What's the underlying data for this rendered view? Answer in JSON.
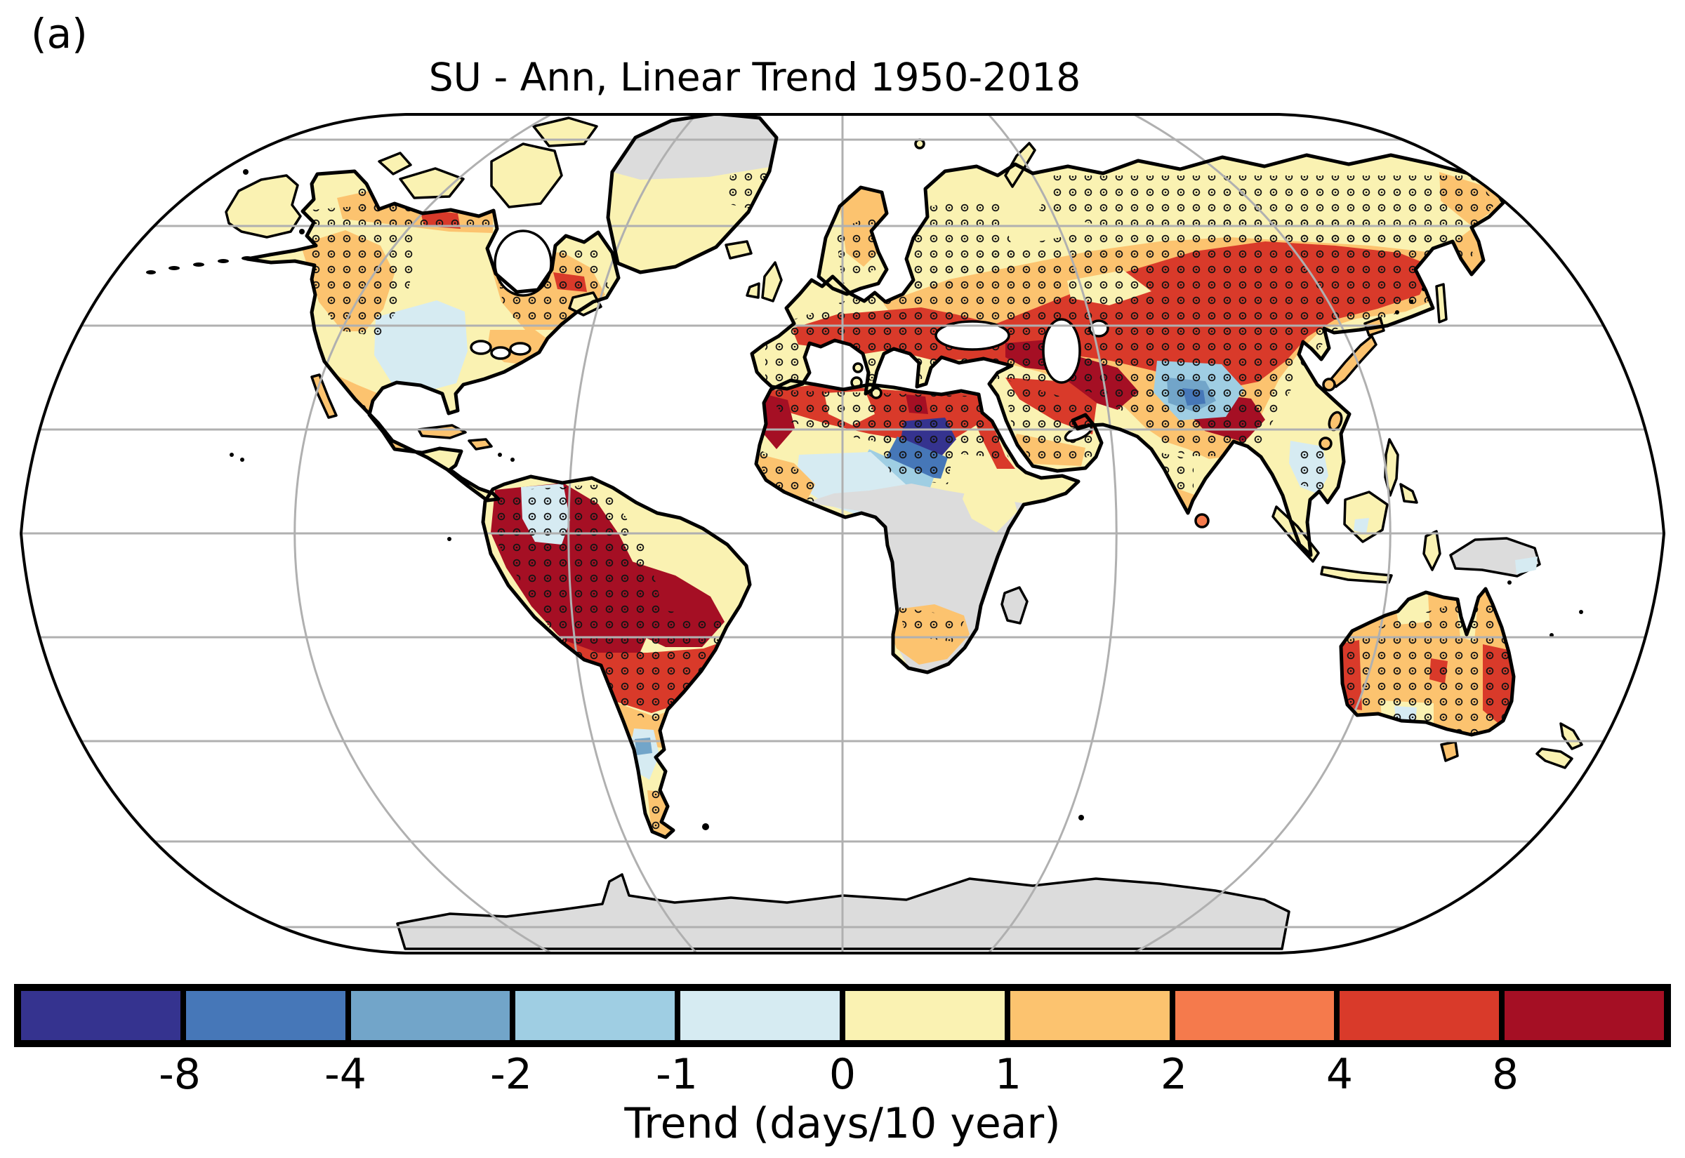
{
  "figure": {
    "panel_label": "(a)",
    "title": "SU - Ann, Linear Trend 1950-2018"
  },
  "colorbar": {
    "axis_label": "Trend (days/10 year)",
    "tick_labels": [
      "-8",
      "-4",
      "-2",
      "-1",
      "0",
      "1",
      "2",
      "4",
      "8"
    ],
    "cell_colors": [
      "#35338f",
      "#4677b8",
      "#72a5c9",
      "#9fcee3",
      "#d6ebf2",
      "#faf2b2",
      "#fcc36f",
      "#f57a4c",
      "#d93a2a",
      "#a50f24"
    ],
    "no_data_color": "#dcdcdc",
    "frame_color": "#000000"
  },
  "map": {
    "projection": "Robinson",
    "ocean_color": "#ffffff",
    "graticule_color": "#b0b0b0",
    "coastline_color": "#000000",
    "stipple": "small open circles over land mark significant trends",
    "regions": [
      {
        "name": "Alaska and far northern Canada",
        "trend_days_per_decade": "0 to 1"
      },
      {
        "name": "Western Canada and US Pacific coast",
        "trend_days_per_decade": "1 to 2 (stippled)"
      },
      {
        "name": "Central and southeastern United States",
        "trend_days_per_decade": "-1 to 0"
      },
      {
        "name": "Eastern Canada / Quebec",
        "trend_days_per_decade": "1 to 2 (stippled)"
      },
      {
        "name": "Mexico and Central America",
        "trend_days_per_decade": "1 to 4 (stippled)"
      },
      {
        "name": "Greenland interior",
        "trend_days_per_decade": "no data"
      },
      {
        "name": "Northwestern South America (Colombia-Peru-W Brazil)",
        "trend_days_per_decade": "greater than 8 (stippled)"
      },
      {
        "name": "Central and eastern Brazil",
        "trend_days_per_decade": "2 to 4 (stippled)"
      },
      {
        "name": "Central Argentina",
        "trend_days_per_decade": "-2 to 0"
      },
      {
        "name": "Patagonia",
        "trend_days_per_decade": "1 to 2 (stippled)"
      },
      {
        "name": "Northwest Africa (Morocco / Western Sahara)",
        "trend_days_per_decade": "4 to more than 8 (stippled)"
      },
      {
        "name": "North Africa, Mediterranean and Middle East",
        "trend_days_per_decade": "2 to 4 (stippled)"
      },
      {
        "name": "Sudan-Chad region",
        "trend_days_per_decade": "-8 to -4 (stippled)"
      },
      {
        "name": "Sahel belt",
        "trend_days_per_decade": "-2 to 0 (partly stippled)"
      },
      {
        "name": "Central Africa and Antarctica",
        "trend_days_per_decade": "no data"
      },
      {
        "name": "Southern Africa",
        "trend_days_per_decade": "1 to 2 (stippled)"
      },
      {
        "name": "Europe",
        "trend_days_per_decade": "2 to 4 (stippled)"
      },
      {
        "name": "Siberia, Central Asia and northern China",
        "trend_days_per_decade": "2 to 4 (stippled)"
      },
      {
        "name": "Tibetan Plateau",
        "trend_days_per_decade": "-4 to -1"
      },
      {
        "name": "Iran / Caucasus",
        "trend_days_per_decade": "4 to 8 (stippled)"
      },
      {
        "name": "Southeast China / Myanmar",
        "trend_days_per_decade": "4 to 8 (stippled)"
      },
      {
        "name": "India",
        "trend_days_per_decade": "0 to 1 (partly stippled)"
      },
      {
        "name": "Mainland Southeast Asia",
        "trend_days_per_decade": "-1 to 0"
      },
      {
        "name": "Australia",
        "trend_days_per_decade": "1 to 4 (stippled)"
      },
      {
        "name": "New Zealand",
        "trend_days_per_decade": "0 to 1"
      }
    ]
  }
}
